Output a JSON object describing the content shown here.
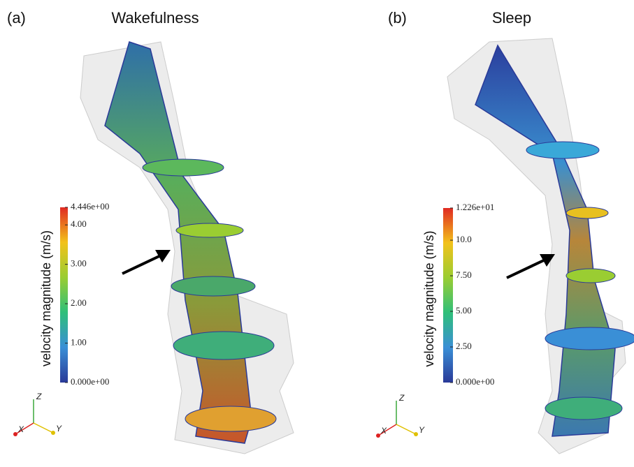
{
  "panels": [
    {
      "label": "(a)",
      "title": "Wakefulness",
      "colorbar": {
        "title": "velocity magnitude (m/s)",
        "range": [
          0,
          4.446
        ],
        "ticks": [
          {
            "value": 0,
            "label": "0.000e+00"
          },
          {
            "value": 1,
            "label": "1.00"
          },
          {
            "value": 2,
            "label": "2.00"
          },
          {
            "value": 3,
            "label": "3.00"
          },
          {
            "value": 4,
            "label": "4.00"
          },
          {
            "value": 4.446,
            "label": "4.446e+00"
          }
        ]
      },
      "axes": [
        "Z",
        "X",
        "Y"
      ]
    },
    {
      "label": "(b)",
      "title": "Sleep",
      "colorbar": {
        "title": "velocity magnitude (m/s)",
        "range": [
          0,
          12.26
        ],
        "ticks": [
          {
            "value": 0,
            "label": "0.000e+00"
          },
          {
            "value": 2.5,
            "label": "2.50"
          },
          {
            "value": 5,
            "label": "5.00"
          },
          {
            "value": 7.5,
            "label": "7.50"
          },
          {
            "value": 10,
            "label": "10.0"
          },
          {
            "value": 12.26,
            "label": "1.226e+01"
          }
        ]
      },
      "axes": [
        "Z",
        "X",
        "Y"
      ]
    }
  ]
}
